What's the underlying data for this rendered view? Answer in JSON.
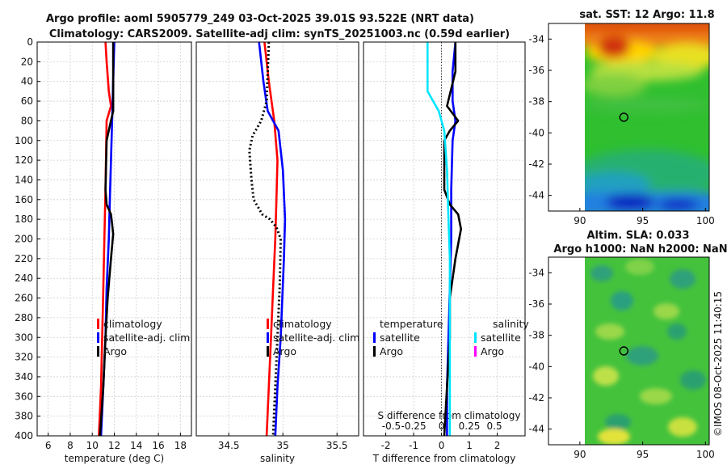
{
  "colors": {
    "clim": "#ff0000",
    "sat": "#0000ff",
    "argo": "#000000",
    "sal_sat": "#00e5ff",
    "sal_argo": "#ff00ff"
  },
  "titles": {
    "line1": "Argo profile: aoml 5905779_249 03-Oct-2025 39.01S 93.522E (NRT data)",
    "line2": "Climatology: CARS2009. Satellite-adj clim: synTS_20251003.nc (0.59d earlier)",
    "sst_title": "sat. SST: 12 Argo: 11.8",
    "sla_title1": "Altim. SLA: 0.033",
    "sla_title2": "Argo h1000: NaN h2000: NaN"
  },
  "stamp": "©IMOS 08-Oct-2025 11:40:15",
  "depth_axis": {
    "ylim": [
      0,
      400
    ],
    "ticks": [
      0,
      20,
      40,
      60,
      80,
      100,
      120,
      140,
      160,
      180,
      200,
      220,
      240,
      260,
      280,
      300,
      320,
      340,
      360,
      380,
      400
    ]
  },
  "legend_labels": {
    "clim": "climatology",
    "sat": "satellite-adj. clim",
    "argo": "Argo",
    "temperature": "temperature",
    "salinity": "salinity",
    "satellite": "satellite"
  },
  "chart_data": [
    {
      "type": "line",
      "name": "temperature",
      "xlabel": "temperature (deg C)",
      "xlim": [
        5,
        19
      ],
      "xticks": [
        6,
        8,
        10,
        12,
        14,
        16,
        18
      ],
      "series": [
        {
          "name": "climatology",
          "color": "#ff0000",
          "style": "solid",
          "points": [
            [
              11.2,
              0
            ],
            [
              11.3,
              20
            ],
            [
              11.5,
              50
            ],
            [
              11.7,
              65
            ],
            [
              11.3,
              80
            ],
            [
              11.2,
              150
            ],
            [
              11.1,
              200
            ],
            [
              11.0,
              250
            ],
            [
              10.9,
              300
            ],
            [
              10.8,
              350
            ],
            [
              10.6,
              400
            ]
          ]
        },
        {
          "name": "satellite-adj. clim",
          "color": "#0000ff",
          "style": "solid",
          "points": [
            [
              12.0,
              0
            ],
            [
              11.9,
              40
            ],
            [
              11.8,
              80
            ],
            [
              11.7,
              120
            ],
            [
              11.6,
              160
            ],
            [
              11.5,
              200
            ],
            [
              11.3,
              250
            ],
            [
              11.2,
              300
            ],
            [
              11.0,
              350
            ],
            [
              10.8,
              400
            ]
          ]
        },
        {
          "name": "Argo",
          "color": "#000000",
          "style": "solid",
          "points": [
            [
              11.9,
              0
            ],
            [
              11.9,
              40
            ],
            [
              11.9,
              70
            ],
            [
              11.6,
              85
            ],
            [
              11.3,
              100
            ],
            [
              11.2,
              150
            ],
            [
              11.3,
              165
            ],
            [
              11.7,
              175
            ],
            [
              11.8,
              185
            ],
            [
              11.9,
              195
            ],
            [
              11.7,
              220
            ],
            [
              11.4,
              260
            ],
            [
              11.2,
              300
            ],
            [
              11.0,
              350
            ],
            [
              10.7,
              400
            ]
          ]
        }
      ]
    },
    {
      "type": "line",
      "name": "salinity",
      "xlabel": "salinity",
      "xlim": [
        34.2,
        35.7
      ],
      "xticks": [
        34.5,
        35,
        35.5
      ],
      "series": [
        {
          "name": "climatology",
          "color": "#ff0000",
          "style": "solid",
          "points": [
            [
              34.83,
              0
            ],
            [
              34.87,
              40
            ],
            [
              34.92,
              80
            ],
            [
              34.95,
              120
            ],
            [
              34.94,
              160
            ],
            [
              34.93,
              200
            ],
            [
              34.91,
              250
            ],
            [
              34.89,
              300
            ],
            [
              34.87,
              350
            ],
            [
              34.85,
              400
            ]
          ]
        },
        {
          "name": "satellite-adj. clim",
          "color": "#0000ff",
          "style": "solid",
          "points": [
            [
              34.78,
              0
            ],
            [
              34.82,
              40
            ],
            [
              34.86,
              70
            ],
            [
              34.96,
              90
            ],
            [
              35.0,
              130
            ],
            [
              35.02,
              180
            ],
            [
              35.01,
              220
            ],
            [
              34.98,
              300
            ],
            [
              34.95,
              350
            ],
            [
              34.93,
              400
            ]
          ]
        },
        {
          "name": "Argo",
          "color": "#000000",
          "style": "dotted",
          "points": [
            [
              34.87,
              0
            ],
            [
              34.85,
              60
            ],
            [
              34.8,
              80
            ],
            [
              34.72,
              95
            ],
            [
              34.69,
              110
            ],
            [
              34.71,
              140
            ],
            [
              34.73,
              160
            ],
            [
              34.81,
              175
            ],
            [
              34.88,
              180
            ],
            [
              34.94,
              188
            ],
            [
              34.98,
              200
            ],
            [
              34.97,
              250
            ],
            [
              34.95,
              300
            ],
            [
              34.93,
              350
            ],
            [
              34.91,
              400
            ]
          ]
        }
      ]
    },
    {
      "type": "line",
      "name": "difference",
      "xlabel": "T difference from climatology",
      "xlabel_top": "S difference from climatology",
      "xlim": [
        -2.8,
        3.0
      ],
      "xticks": [
        -2,
        -1,
        0,
        1,
        2
      ],
      "top_ticks": [
        "-0.5",
        "-0.25",
        "0",
        "0.25",
        "0.5"
      ],
      "top_tick_positions": [
        -1.8,
        -1.0,
        0.0,
        1.0,
        1.9
      ],
      "series": [
        {
          "name": "temperature satellite",
          "color": "#0000ff",
          "style": "solid",
          "points": [
            [
              0.5,
              0
            ],
            [
              0.4,
              30
            ],
            [
              0.4,
              60
            ],
            [
              0.5,
              80
            ],
            [
              0.4,
              100
            ],
            [
              0.35,
              150
            ],
            [
              0.35,
              200
            ],
            [
              0.3,
              250
            ],
            [
              0.25,
              300
            ],
            [
              0.2,
              350
            ],
            [
              0.2,
              400
            ]
          ]
        },
        {
          "name": "temperature Argo",
          "color": "#000000",
          "style": "solid",
          "points": [
            [
              0.5,
              0
            ],
            [
              0.5,
              30
            ],
            [
              0.2,
              65
            ],
            [
              0.6,
              80
            ],
            [
              0.3,
              90
            ],
            [
              0.1,
              100
            ],
            [
              0.1,
              150
            ],
            [
              0.3,
              165
            ],
            [
              0.6,
              175
            ],
            [
              0.7,
              190
            ],
            [
              0.5,
              220
            ],
            [
              0.3,
              260
            ],
            [
              0.3,
              300
            ],
            [
              0.2,
              350
            ],
            [
              0.1,
              400
            ]
          ]
        },
        {
          "name": "salinity satellite",
          "color": "#00e5ff",
          "style": "solid",
          "points": [
            [
              -0.5,
              0
            ],
            [
              -0.5,
              30
            ],
            [
              -0.5,
              50
            ],
            [
              -0.1,
              70
            ],
            [
              0.1,
              90
            ],
            [
              0.2,
              130
            ],
            [
              0.25,
              180
            ],
            [
              0.3,
              220
            ],
            [
              0.3,
              300
            ],
            [
              0.3,
              350
            ],
            [
              0.3,
              400
            ]
          ]
        }
      ]
    },
    {
      "type": "heatmap",
      "name": "sat_sst_map",
      "xlim": [
        87.5,
        100.3
      ],
      "ylim": [
        -45,
        -33
      ],
      "xticks": [
        90,
        95,
        100
      ],
      "yticks": [
        -34,
        -36,
        -38,
        -40,
        -42,
        -44
      ],
      "marker": [
        93.5,
        -39.0
      ]
    },
    {
      "type": "heatmap",
      "name": "altim_sla_map",
      "xlim": [
        87.5,
        100.3
      ],
      "ylim": [
        -45,
        -33
      ],
      "xticks": [
        90,
        95,
        100
      ],
      "yticks": [
        -34,
        -36,
        -38,
        -40,
        -42,
        -44
      ],
      "marker": [
        93.5,
        -39.0
      ]
    }
  ]
}
